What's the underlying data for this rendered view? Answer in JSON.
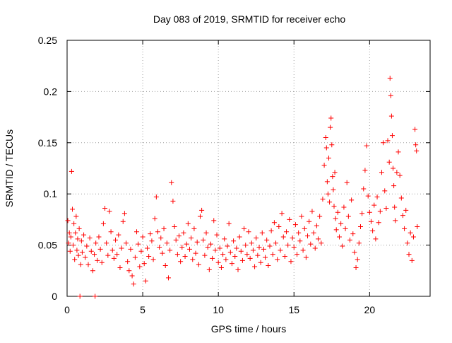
{
  "chart_data": {
    "type": "scatter",
    "title": "Day 083 of 2019, SRMTID for receiver echo",
    "xlabel": "GPS time / hours",
    "ylabel": "SRMTID / TECUs",
    "xlim": [
      0,
      24
    ],
    "ylim": [
      0,
      0.25
    ],
    "x_ticks": [
      0,
      5,
      10,
      15,
      20
    ],
    "x_tick_labels": [
      "0",
      "5",
      "10",
      "15",
      "20"
    ],
    "y_ticks": [
      0,
      0.05,
      0.1,
      0.15,
      0.2,
      0.25
    ],
    "y_tick_labels": [
      "0",
      "0.05",
      "0.1",
      "0.15",
      "0.2",
      "0.25"
    ],
    "grid": true,
    "marker": "+",
    "color": "#ff0000",
    "series": [
      {
        "name": "SRMTID",
        "points": [
          [
            0.05,
            0.074
          ],
          [
            0.1,
            0.052
          ],
          [
            0.15,
            0.062
          ],
          [
            0.2,
            0.044
          ],
          [
            0.25,
            0.058
          ],
          [
            0.3,
            0.122
          ],
          [
            0.35,
            0.085
          ],
          [
            0.4,
            0.05
          ],
          [
            0.45,
            0.071
          ],
          [
            0.5,
            0.036
          ],
          [
            0.55,
            0.062
          ],
          [
            0.6,
            0.078
          ],
          [
            0.65,
            0.045
          ],
          [
            0.7,
            0.056
          ],
          [
            0.75,
            0.04
          ],
          [
            0.8,
            0.066
          ],
          [
            0.85,
            0.0
          ],
          [
            0.9,
            0.031
          ],
          [
            0.95,
            0.054
          ],
          [
            1.0,
            0.043
          ],
          [
            1.1,
            0.06
          ],
          [
            1.2,
            0.038
          ],
          [
            1.3,
            0.049
          ],
          [
            1.4,
            0.031
          ],
          [
            1.5,
            0.057
          ],
          [
            1.6,
            0.044
          ],
          [
            1.7,
            0.025
          ],
          [
            1.8,
            0.041
          ],
          [
            1.85,
            0.0
          ],
          [
            1.9,
            0.052
          ],
          [
            2.0,
            0.035
          ],
          [
            2.1,
            0.058
          ],
          [
            2.2,
            0.046
          ],
          [
            2.3,
            0.033
          ],
          [
            2.4,
            0.071
          ],
          [
            2.5,
            0.086
          ],
          [
            2.6,
            0.052
          ],
          [
            2.7,
            0.04
          ],
          [
            2.8,
            0.083
          ],
          [
            2.9,
            0.063
          ],
          [
            3.0,
            0.045
          ],
          [
            3.1,
            0.037
          ],
          [
            3.2,
            0.055
          ],
          [
            3.3,
            0.041
          ],
          [
            3.4,
            0.06
          ],
          [
            3.5,
            0.028
          ],
          [
            3.6,
            0.047
          ],
          [
            3.7,
            0.073
          ],
          [
            3.8,
            0.081
          ],
          [
            3.9,
            0.052
          ],
          [
            4.0,
            0.034
          ],
          [
            4.1,
            0.025
          ],
          [
            4.2,
            0.046
          ],
          [
            4.3,
            0.02
          ],
          [
            4.4,
            0.012
          ],
          [
            4.5,
            0.038
          ],
          [
            4.6,
            0.063
          ],
          [
            4.7,
            0.051
          ],
          [
            4.8,
            0.029
          ],
          [
            4.9,
            0.044
          ],
          [
            5.0,
            0.058
          ],
          [
            5.1,
            0.032
          ],
          [
            5.2,
            0.015
          ],
          [
            5.3,
            0.047
          ],
          [
            5.4,
            0.039
          ],
          [
            5.5,
            0.061
          ],
          [
            5.6,
            0.054
          ],
          [
            5.7,
            0.036
          ],
          [
            5.8,
            0.076
          ],
          [
            5.9,
            0.097
          ],
          [
            6.0,
            0.063
          ],
          [
            6.1,
            0.048
          ],
          [
            6.2,
            0.057
          ],
          [
            6.3,
            0.042
          ],
          [
            6.4,
            0.066
          ],
          [
            6.5,
            0.03
          ],
          [
            6.6,
            0.052
          ],
          [
            6.7,
            0.018
          ],
          [
            6.8,
            0.045
          ],
          [
            6.9,
            0.111
          ],
          [
            7.0,
            0.093
          ],
          [
            7.1,
            0.068
          ],
          [
            7.2,
            0.055
          ],
          [
            7.3,
            0.041
          ],
          [
            7.4,
            0.059
          ],
          [
            7.5,
            0.034
          ],
          [
            7.6,
            0.048
          ],
          [
            7.7,
            0.062
          ],
          [
            7.8,
            0.039
          ],
          [
            7.9,
            0.051
          ],
          [
            8.0,
            0.071
          ],
          [
            8.1,
            0.046
          ],
          [
            8.2,
            0.057
          ],
          [
            8.3,
            0.036
          ],
          [
            8.4,
            0.066
          ],
          [
            8.5,
            0.042
          ],
          [
            8.6,
            0.053
          ],
          [
            8.7,
            0.031
          ],
          [
            8.8,
            0.078
          ],
          [
            8.9,
            0.084
          ],
          [
            9.0,
            0.055
          ],
          [
            9.1,
            0.04
          ],
          [
            9.2,
            0.062
          ],
          [
            9.3,
            0.048
          ],
          [
            9.4,
            0.026
          ],
          [
            9.5,
            0.051
          ],
          [
            9.6,
            0.037
          ],
          [
            9.7,
            0.074
          ],
          [
            9.8,
            0.045
          ],
          [
            9.9,
            0.06
          ],
          [
            10.0,
            0.033
          ],
          [
            10.1,
            0.047
          ],
          [
            10.2,
            0.028
          ],
          [
            10.3,
            0.041
          ],
          [
            10.4,
            0.056
          ],
          [
            10.5,
            0.036
          ],
          [
            10.6,
            0.049
          ],
          [
            10.7,
            0.071
          ],
          [
            10.8,
            0.043
          ],
          [
            10.9,
            0.032
          ],
          [
            11.0,
            0.054
          ],
          [
            11.1,
            0.039
          ],
          [
            11.2,
            0.047
          ],
          [
            11.3,
            0.026
          ],
          [
            11.4,
            0.058
          ],
          [
            11.5,
            0.044
          ],
          [
            11.6,
            0.035
          ],
          [
            11.7,
            0.066
          ],
          [
            11.8,
            0.05
          ],
          [
            11.9,
            0.041
          ],
          [
            12.0,
            0.063
          ],
          [
            12.1,
            0.037
          ],
          [
            12.2,
            0.052
          ],
          [
            12.3,
            0.045
          ],
          [
            12.4,
            0.029
          ],
          [
            12.5,
            0.057
          ],
          [
            12.6,
            0.04
          ],
          [
            12.7,
            0.048
          ],
          [
            12.8,
            0.033
          ],
          [
            12.9,
            0.062
          ],
          [
            13.0,
            0.046
          ],
          [
            13.1,
            0.038
          ],
          [
            13.2,
            0.055
          ],
          [
            13.3,
            0.03
          ],
          [
            13.4,
            0.049
          ],
          [
            13.5,
            0.064
          ],
          [
            13.6,
            0.041
          ],
          [
            13.7,
            0.072
          ],
          [
            13.8,
            0.052
          ],
          [
            13.9,
            0.036
          ],
          [
            14.0,
            0.068
          ],
          [
            14.1,
            0.045
          ],
          [
            14.2,
            0.081
          ],
          [
            14.3,
            0.058
          ],
          [
            14.4,
            0.039
          ],
          [
            14.5,
            0.063
          ],
          [
            14.6,
            0.05
          ],
          [
            14.7,
            0.075
          ],
          [
            14.8,
            0.034
          ],
          [
            14.9,
            0.057
          ],
          [
            15.0,
            0.048
          ],
          [
            15.1,
            0.07
          ],
          [
            15.2,
            0.041
          ],
          [
            15.3,
            0.062
          ],
          [
            15.4,
            0.054
          ],
          [
            15.5,
            0.078
          ],
          [
            15.6,
            0.045
          ],
          [
            15.7,
            0.066
          ],
          [
            15.8,
            0.038
          ],
          [
            15.9,
            0.059
          ],
          [
            16.0,
            0.073
          ],
          [
            16.1,
            0.051
          ],
          [
            16.2,
            0.083
          ],
          [
            16.3,
            0.062
          ],
          [
            16.4,
            0.047
          ],
          [
            16.5,
            0.069
          ],
          [
            16.6,
            0.056
          ],
          [
            16.7,
            0.078
          ],
          [
            16.8,
            0.052
          ],
          [
            16.9,
            0.095
          ],
          [
            17.0,
            0.128
          ],
          [
            17.1,
            0.155
          ],
          [
            17.15,
            0.145
          ],
          [
            17.2,
            0.112
          ],
          [
            17.25,
            0.1
          ],
          [
            17.3,
            0.135
          ],
          [
            17.35,
            0.092
          ],
          [
            17.4,
            0.165
          ],
          [
            17.45,
            0.174
          ],
          [
            17.5,
            0.148
          ],
          [
            17.55,
            0.117
          ],
          [
            17.6,
            0.104
          ],
          [
            17.65,
            0.088
          ],
          [
            17.7,
            0.121
          ],
          [
            17.75,
            0.076
          ],
          [
            17.8,
            0.065
          ],
          [
            17.9,
            0.082
          ],
          [
            18.0,
            0.058
          ],
          [
            18.1,
            0.071
          ],
          [
            18.2,
            0.049
          ],
          [
            18.3,
            0.087
          ],
          [
            18.4,
            0.066
          ],
          [
            18.5,
            0.111
          ],
          [
            18.6,
            0.078
          ],
          [
            18.7,
            0.055
          ],
          [
            18.8,
            0.094
          ],
          [
            18.9,
            0.061
          ],
          [
            19.0,
            0.043
          ],
          [
            19.1,
            0.028
          ],
          [
            19.2,
            0.036
          ],
          [
            19.3,
            0.052
          ],
          [
            19.4,
            0.068
          ],
          [
            19.5,
            0.081
          ],
          [
            19.6,
            0.105
          ],
          [
            19.7,
            0.123
          ],
          [
            19.8,
            0.147
          ],
          [
            19.9,
            0.098
          ],
          [
            20.0,
            0.082
          ],
          [
            20.1,
            0.073
          ],
          [
            20.2,
            0.064
          ],
          [
            20.3,
            0.089
          ],
          [
            20.4,
            0.056
          ],
          [
            20.5,
            0.097
          ],
          [
            20.6,
            0.072
          ],
          [
            20.7,
            0.083
          ],
          [
            20.8,
            0.121
          ],
          [
            20.9,
            0.15
          ],
          [
            21.0,
            0.103
          ],
          [
            21.1,
            0.086
          ],
          [
            21.2,
            0.152
          ],
          [
            21.3,
            0.131
          ],
          [
            21.35,
            0.213
          ],
          [
            21.4,
            0.196
          ],
          [
            21.45,
            0.176
          ],
          [
            21.5,
            0.157
          ],
          [
            21.55,
            0.125
          ],
          [
            21.6,
            0.108
          ],
          [
            21.65,
            0.087
          ],
          [
            21.7,
            0.074
          ],
          [
            21.8,
            0.121
          ],
          [
            21.9,
            0.141
          ],
          [
            22.0,
            0.118
          ],
          [
            22.1,
            0.096
          ],
          [
            22.2,
            0.079
          ],
          [
            22.3,
            0.066
          ],
          [
            22.4,
            0.084
          ],
          [
            22.5,
            0.052
          ],
          [
            22.6,
            0.041
          ],
          [
            22.7,
            0.062
          ],
          [
            22.8,
            0.035
          ],
          [
            22.9,
            0.058
          ],
          [
            23.0,
            0.163
          ],
          [
            23.05,
            0.148
          ],
          [
            23.1,
            0.142
          ],
          [
            23.15,
            0.068
          ]
        ]
      }
    ]
  }
}
